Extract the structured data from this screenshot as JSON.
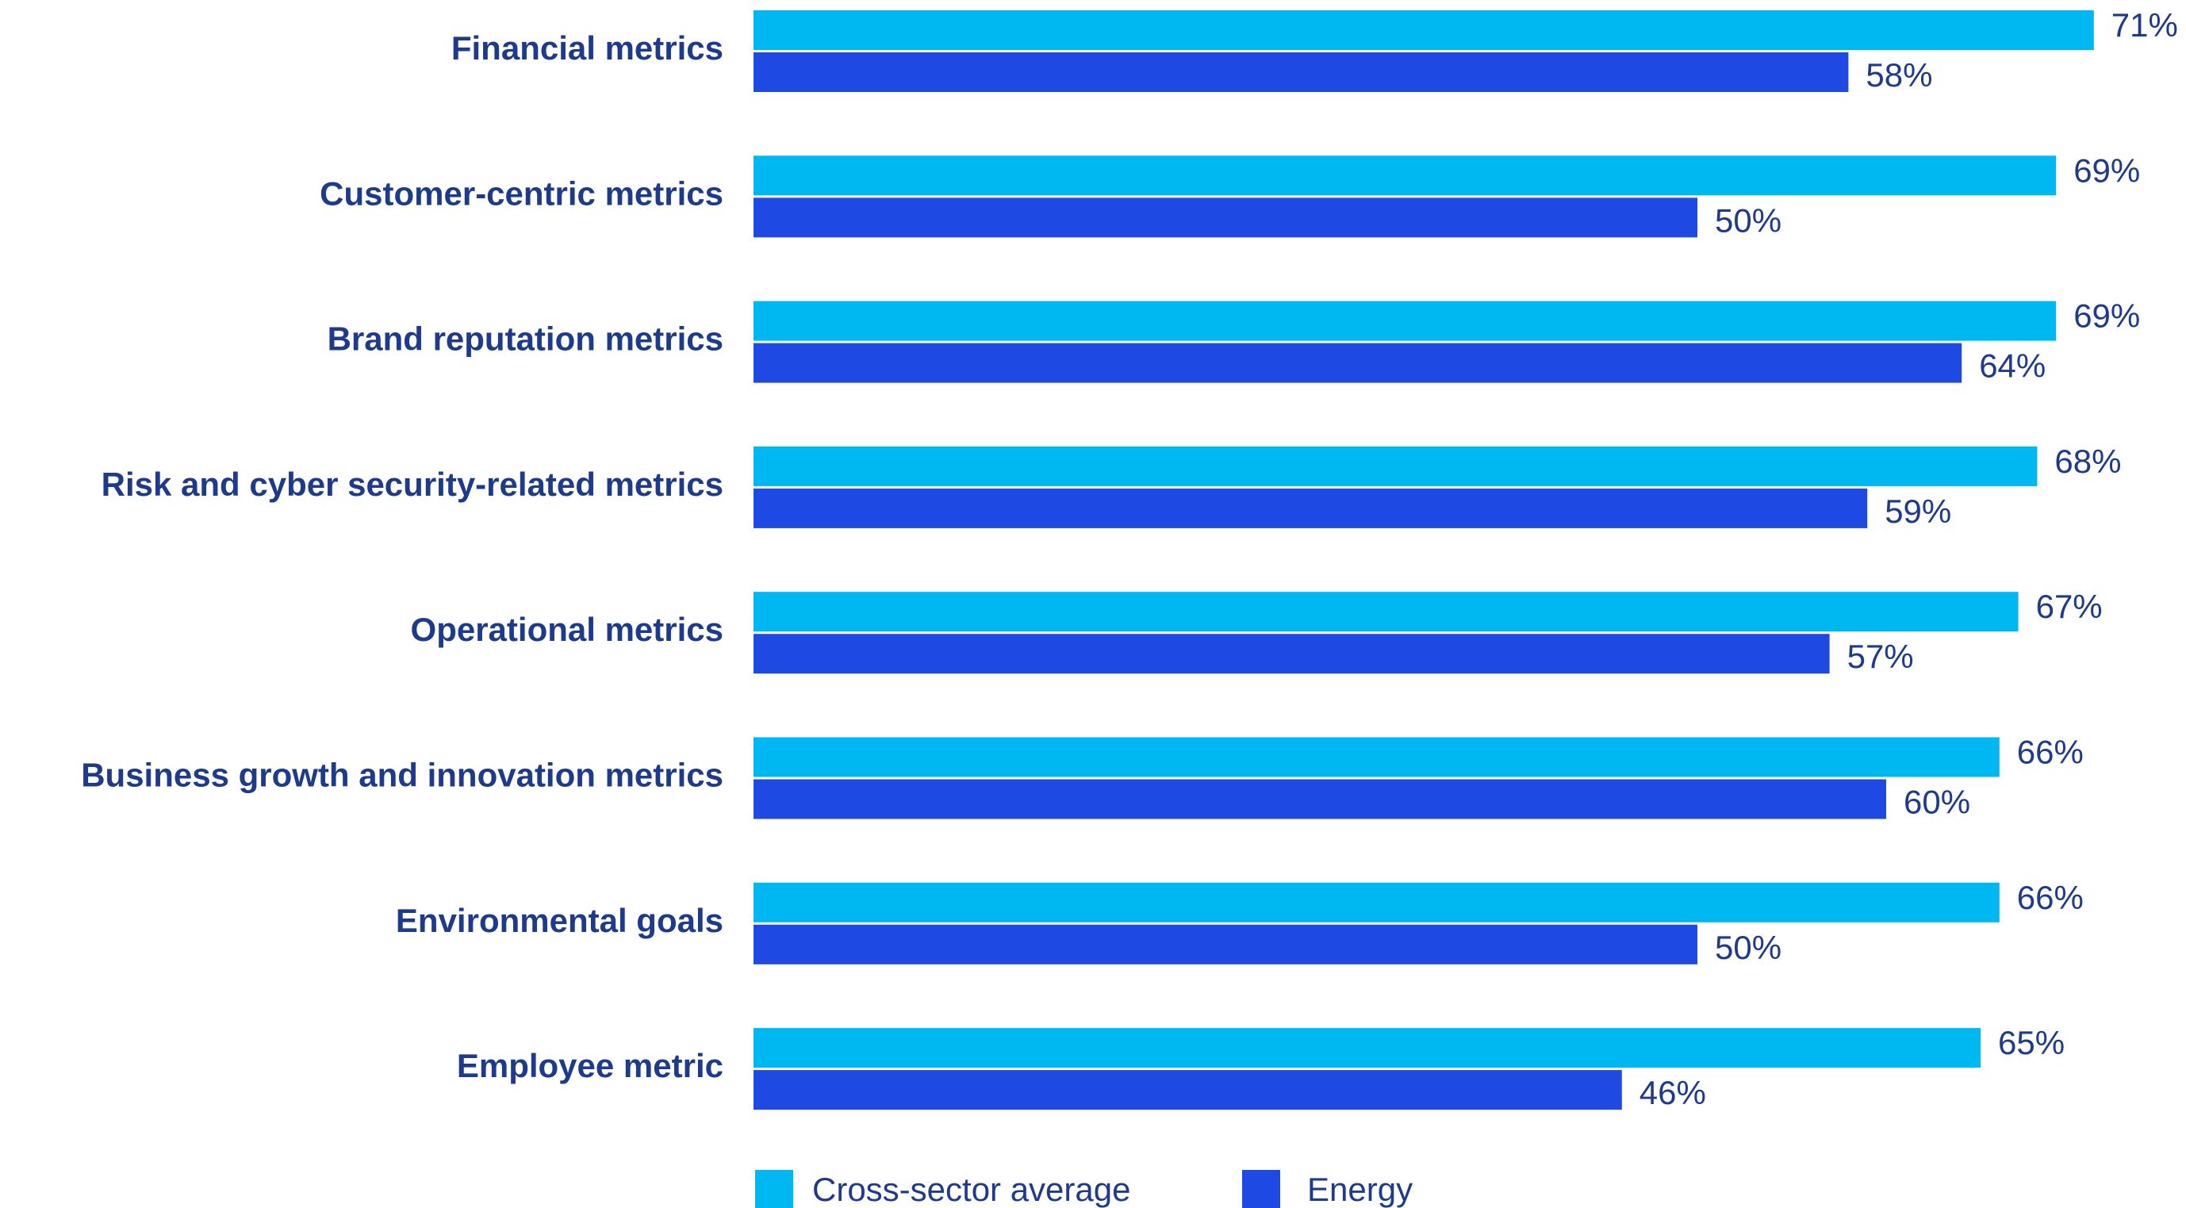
{
  "chart_data": {
    "type": "bar",
    "orientation": "horizontal",
    "categories": [
      "Financial metrics",
      "Customer-centric metrics",
      "Brand reputation metrics",
      "Risk and cyber security-related metrics",
      "Operational metrics",
      "Business growth and innovation metrics",
      "Environmental goals",
      "Employee metric"
    ],
    "series": [
      {
        "name": "Cross-sector average",
        "color": "#00b8f1",
        "values": [
          71,
          69,
          69,
          68,
          67,
          66,
          66,
          65
        ],
        "labels": [
          "71%",
          "69%",
          "69%",
          "68%",
          "67%",
          "66%",
          "66%",
          "65%"
        ]
      },
      {
        "name": "Energy",
        "color": "#1e49e2",
        "values": [
          58,
          50,
          64,
          59,
          57,
          60,
          50,
          46
        ],
        "labels": [
          "58%",
          "50%",
          "64%",
          "59%",
          "57%",
          "60%",
          "50%",
          "46%"
        ]
      }
    ],
    "value_unit": "%",
    "xlim": [
      0,
      71
    ],
    "grid": false,
    "legend_position": "bottom-left"
  }
}
